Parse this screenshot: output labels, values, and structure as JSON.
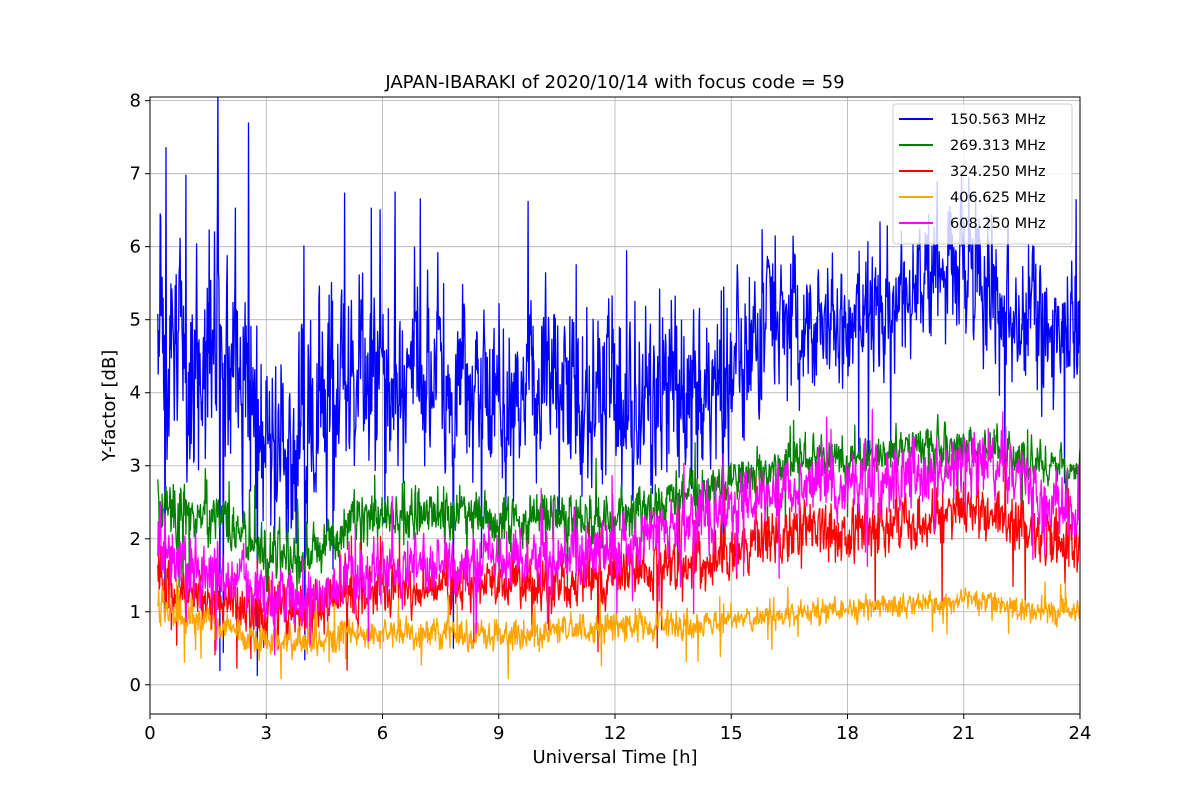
{
  "chart_data": {
    "type": "line",
    "title": "JAPAN-IBARAKI of 2020/10/14 with focus code = 59",
    "xlabel": "Universal Time [h]",
    "ylabel": "Y-factor [dB]",
    "xlim": [
      0,
      24
    ],
    "ylim": [
      -0.4,
      8.05
    ],
    "xticks": [
      0,
      3,
      6,
      9,
      12,
      15,
      18,
      21,
      24
    ],
    "yticks": [
      0,
      1,
      2,
      3,
      4,
      5,
      6,
      7,
      8
    ],
    "grid": true,
    "legend_position": "top-right",
    "x_start": 0.2,
    "x_end": 24,
    "series": [
      {
        "name": "150.563 MHz",
        "color": "#0000ff",
        "x": [
          0.2,
          1,
          2,
          3,
          4,
          5,
          6,
          7,
          8,
          9,
          10,
          11,
          12,
          13,
          14,
          15,
          16,
          17,
          18,
          19,
          20,
          21,
          22,
          23,
          24
        ],
        "mean": [
          4.7,
          4.4,
          4.6,
          3.3,
          3.4,
          4.2,
          4.4,
          4.3,
          4.2,
          4.0,
          4.0,
          3.9,
          3.9,
          4.0,
          4.0,
          4.3,
          4.8,
          4.9,
          5.0,
          5.1,
          5.5,
          5.9,
          5.3,
          4.8,
          4.6
        ],
        "spread": [
          1.2,
          1.0,
          1.3,
          1.0,
          1.0,
          1.0,
          0.9,
          0.9,
          0.9,
          0.9,
          0.9,
          0.9,
          0.9,
          0.9,
          0.9,
          0.8,
          0.7,
          0.6,
          0.6,
          0.6,
          0.7,
          0.8,
          0.8,
          0.7,
          0.6
        ]
      },
      {
        "name": "269.313 MHz",
        "color": "#008000",
        "x": [
          0.2,
          1,
          2,
          3,
          4,
          5,
          6,
          7,
          8,
          9,
          10,
          11,
          12,
          13,
          14,
          15,
          16,
          17,
          18,
          19,
          20,
          21,
          22,
          23,
          24
        ],
        "mean": [
          2.5,
          2.3,
          2.2,
          1.8,
          1.7,
          2.2,
          2.3,
          2.3,
          2.4,
          2.2,
          2.3,
          2.3,
          2.3,
          2.4,
          2.6,
          2.8,
          3.0,
          3.1,
          3.1,
          3.2,
          3.3,
          3.3,
          3.2,
          3.0,
          2.9
        ],
        "spread": [
          0.3,
          0.25,
          0.25,
          0.3,
          0.3,
          0.25,
          0.25,
          0.25,
          0.25,
          0.25,
          0.25,
          0.25,
          0.25,
          0.25,
          0.25,
          0.25,
          0.2,
          0.2,
          0.2,
          0.2,
          0.2,
          0.2,
          0.2,
          0.2,
          0.2
        ]
      },
      {
        "name": "324.250 MHz",
        "color": "#ff0000",
        "x": [
          0.2,
          1,
          2,
          3,
          4,
          5,
          6,
          7,
          8,
          9,
          10,
          11,
          12,
          13,
          14,
          15,
          16,
          17,
          18,
          19,
          20,
          21,
          22,
          23,
          24
        ],
        "mean": [
          1.5,
          1.2,
          1.1,
          1.0,
          1.0,
          1.2,
          1.3,
          1.3,
          1.4,
          1.4,
          1.4,
          1.4,
          1.5,
          1.6,
          1.7,
          1.8,
          2.0,
          2.1,
          2.1,
          2.1,
          2.2,
          2.4,
          2.3,
          2.0,
          1.9
        ],
        "spread": [
          0.3,
          0.25,
          0.25,
          0.3,
          0.3,
          0.25,
          0.25,
          0.25,
          0.25,
          0.25,
          0.25,
          0.25,
          0.25,
          0.3,
          0.3,
          0.3,
          0.3,
          0.3,
          0.3,
          0.3,
          0.3,
          0.3,
          0.3,
          0.3,
          0.3
        ]
      },
      {
        "name": "406.625 MHz",
        "color": "#ffa500",
        "x": [
          0.2,
          1,
          2,
          3,
          4,
          5,
          6,
          7,
          8,
          9,
          10,
          11,
          12,
          13,
          14,
          15,
          16,
          17,
          18,
          19,
          20,
          21,
          22,
          23,
          24
        ],
        "mean": [
          1.1,
          0.9,
          0.8,
          0.6,
          0.6,
          0.7,
          0.7,
          0.7,
          0.7,
          0.7,
          0.7,
          0.8,
          0.8,
          0.8,
          0.8,
          0.85,
          0.95,
          1.0,
          1.05,
          1.1,
          1.1,
          1.15,
          1.1,
          1.0,
          1.0
        ],
        "spread": [
          0.2,
          0.15,
          0.15,
          0.15,
          0.15,
          0.15,
          0.15,
          0.15,
          0.15,
          0.15,
          0.15,
          0.15,
          0.15,
          0.15,
          0.15,
          0.12,
          0.12,
          0.12,
          0.12,
          0.12,
          0.12,
          0.12,
          0.12,
          0.12,
          0.12
        ]
      },
      {
        "name": "608.250 MHz",
        "color": "#ff00ff",
        "x": [
          0.2,
          1,
          2,
          3,
          4,
          5,
          6,
          7,
          8,
          9,
          10,
          11,
          12,
          13,
          14,
          15,
          16,
          17,
          18,
          19,
          20,
          21,
          22,
          23,
          24
        ],
        "mean": [
          2.0,
          1.6,
          1.5,
          1.2,
          1.1,
          1.4,
          1.6,
          1.6,
          1.7,
          1.7,
          1.7,
          1.8,
          1.9,
          2.1,
          2.2,
          2.4,
          2.6,
          2.7,
          2.7,
          2.8,
          2.9,
          3.1,
          3.0,
          2.6,
          2.3
        ],
        "spread": [
          0.35,
          0.3,
          0.3,
          0.3,
          0.3,
          0.3,
          0.3,
          0.3,
          0.3,
          0.3,
          0.3,
          0.3,
          0.3,
          0.3,
          0.3,
          0.3,
          0.3,
          0.3,
          0.3,
          0.3,
          0.3,
          0.3,
          0.3,
          0.3,
          0.3
        ]
      }
    ]
  }
}
